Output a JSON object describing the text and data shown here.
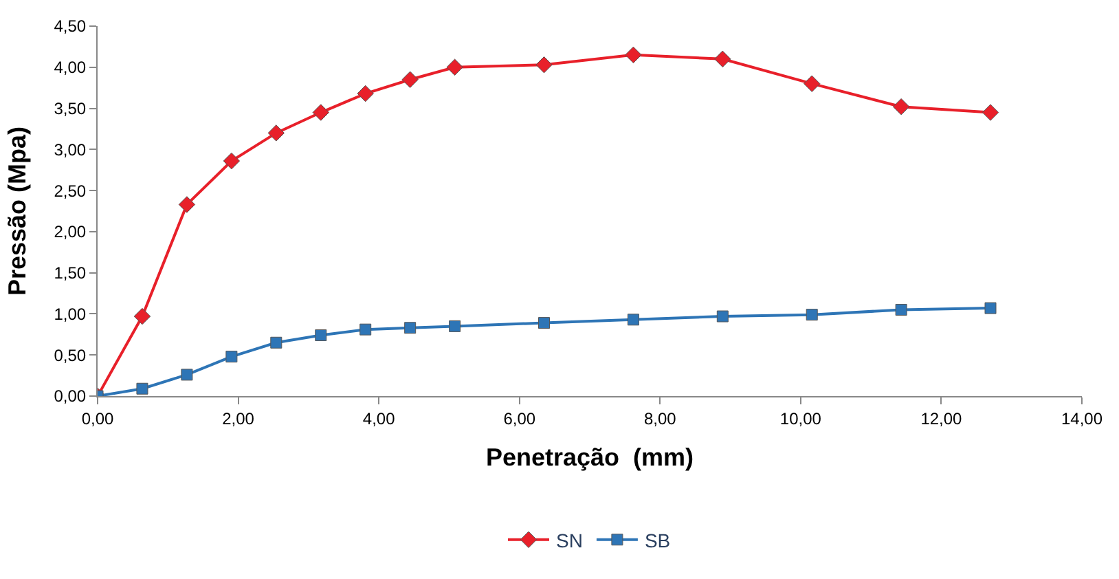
{
  "chart_data": {
    "type": "line",
    "xlabel": "Penetração  (mm)",
    "ylabel": "Pressão (Mpa)",
    "x": [
      0,
      0.635,
      1.27,
      1.905,
      2.54,
      3.175,
      3.81,
      4.445,
      5.08,
      6.35,
      7.62,
      8.89,
      10.16,
      11.43,
      12.7
    ],
    "series": [
      {
        "name": "SN",
        "color": "#e8202a",
        "marker": "diamond",
        "values": [
          0,
          0.97,
          2.33,
          2.86,
          3.2,
          3.45,
          3.68,
          3.85,
          4.0,
          4.03,
          4.15,
          4.1,
          3.8,
          3.52,
          3.45
        ]
      },
      {
        "name": "SB",
        "color": "#2e75b6",
        "marker": "square",
        "values": [
          0,
          0.09,
          0.26,
          0.48,
          0.65,
          0.74,
          0.81,
          0.83,
          0.85,
          0.89,
          0.93,
          0.97,
          0.99,
          1.05,
          1.07
        ]
      }
    ],
    "xlim": [
      0,
      14
    ],
    "ylim": [
      0,
      4.5
    ],
    "xticks": [
      {
        "value": 0,
        "label": "0,00"
      },
      {
        "value": 2,
        "label": "2,00"
      },
      {
        "value": 4,
        "label": "4,00"
      },
      {
        "value": 6,
        "label": "6,00"
      },
      {
        "value": 8,
        "label": "8,00"
      },
      {
        "value": 10,
        "label": "10,00"
      },
      {
        "value": 12,
        "label": "12,00"
      },
      {
        "value": 14,
        "label": "14,00"
      }
    ],
    "yticks": [
      {
        "value": 0,
        "label": "0,00"
      },
      {
        "value": 0.5,
        "label": "0,50"
      },
      {
        "value": 1,
        "label": "1,00"
      },
      {
        "value": 1.5,
        "label": "1,50"
      },
      {
        "value": 2,
        "label": "2,00"
      },
      {
        "value": 2.5,
        "label": "2,50"
      },
      {
        "value": 3,
        "label": "3,00"
      },
      {
        "value": 3.5,
        "label": "3,50"
      },
      {
        "value": 4,
        "label": "4,00"
      },
      {
        "value": 4.5,
        "label": "4,50"
      }
    ],
    "grid": false,
    "legend": "bottom",
    "line_style": "solid"
  }
}
